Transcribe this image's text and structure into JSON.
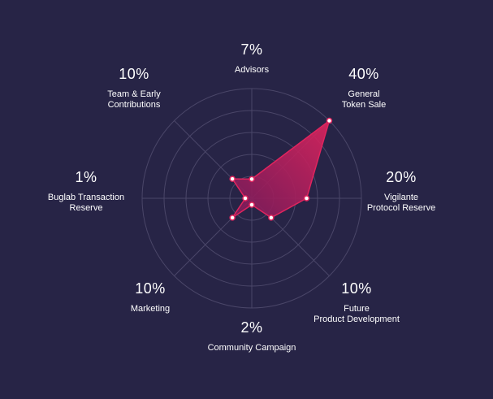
{
  "chart_data": {
    "type": "radar",
    "max": 40,
    "rings": 5,
    "colors": {
      "background": "#272446",
      "grid": "#4a4668",
      "fill_start": "#e0245e",
      "fill_end": "#7a1a5a",
      "point": "#ffffff"
    },
    "categories": [
      {
        "name": "Advisors",
        "label_lines": [
          "Advisors"
        ],
        "display": "7%",
        "value": 7
      },
      {
        "name": "General Token Sale",
        "label_lines": [
          "General",
          "Token Sale"
        ],
        "display": "40%",
        "value": 40
      },
      {
        "name": "Vigilante Protocol Reserve",
        "label_lines": [
          "Vigilante",
          "Protocol Reserve"
        ],
        "display": "20%",
        "value": 20
      },
      {
        "name": "Future Product Development",
        "label_lines": [
          "Future",
          "Product Development"
        ],
        "display": "10%",
        "value": 10
      },
      {
        "name": "Community Campaign",
        "label_lines": [
          "Community Campaign"
        ],
        "display": "2%",
        "value": 2
      },
      {
        "name": "Marketing",
        "label_lines": [
          "Marketing"
        ],
        "display": "10%",
        "value": 10
      },
      {
        "name": "Buglab Transaction Reserve",
        "label_lines": [
          "Buglab Transaction",
          "Reserve"
        ],
        "display": "1%",
        "value": 1
      },
      {
        "name": "Team & Early Contributions",
        "label_lines": [
          "Team & Early",
          "Contributions"
        ],
        "display": "10%",
        "value": 10
      }
    ]
  }
}
